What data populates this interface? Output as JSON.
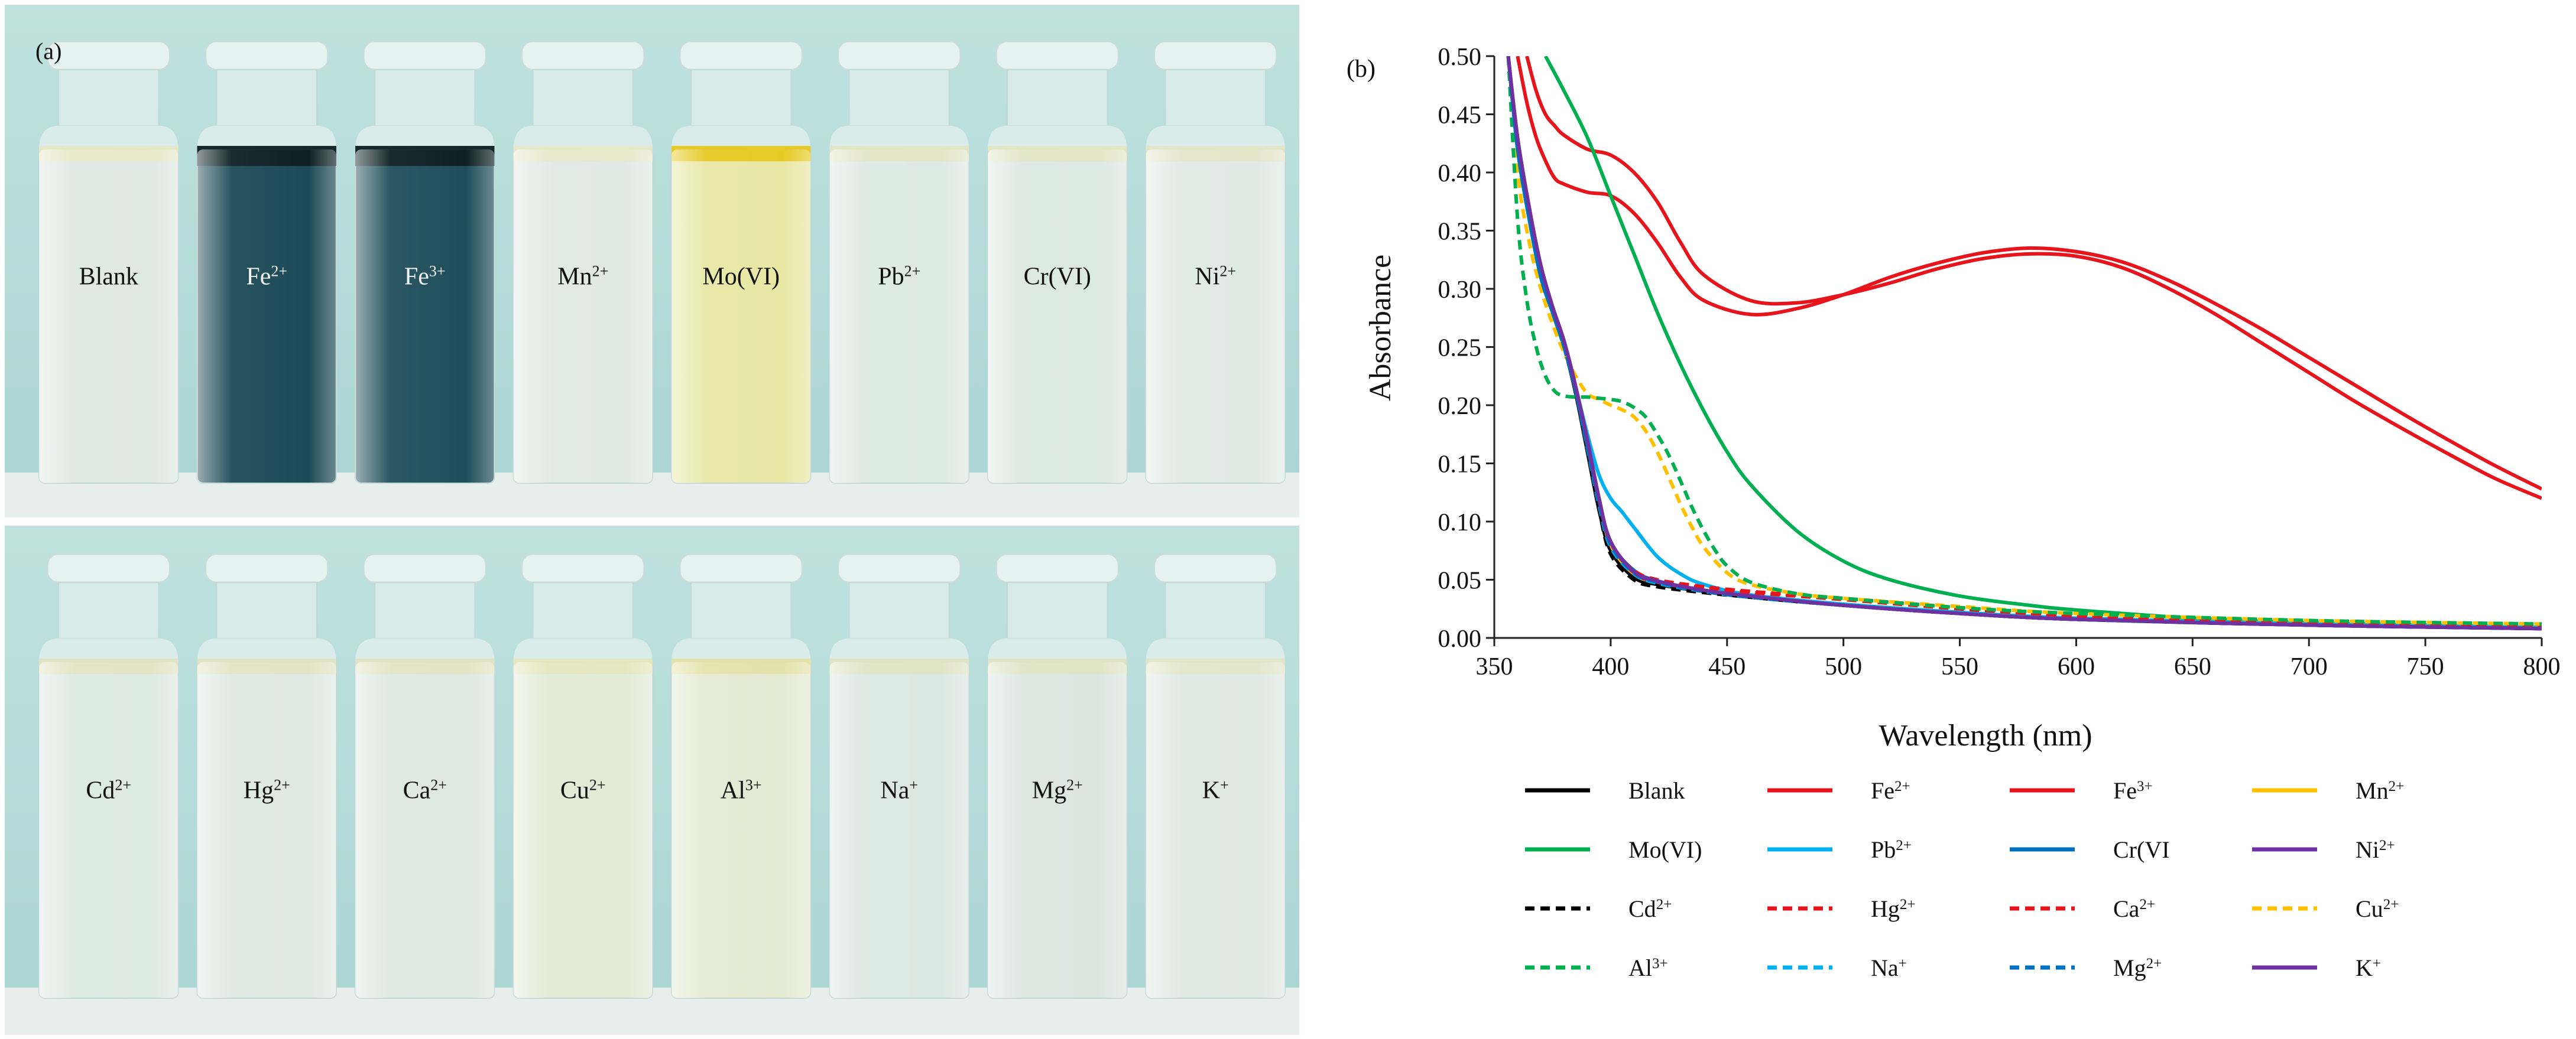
{
  "panel_a": {
    "label": "(a)",
    "top_row": [
      {
        "label": "Blank",
        "liquid": "#dfe9e4",
        "band": "#e6e8c6",
        "tint": "light"
      },
      {
        "label": "Fe2+",
        "liquid": "#1c4a56",
        "band": "#0d1d22",
        "tint": "dark"
      },
      {
        "label": "Fe3+",
        "liquid": "#1f4e5a",
        "band": "#0d1d22",
        "tint": "dark"
      },
      {
        "label": "Mn2+",
        "liquid": "#e0eae4",
        "band": "#e6e8c8",
        "tint": "light"
      },
      {
        "label": "Mo(VI)",
        "liquid": "#e8e7a4",
        "band": "#e6c81e",
        "tint": "light"
      },
      {
        "label": "Pb2+",
        "liquid": "#dde9e3",
        "band": "#e2e6c4",
        "tint": "light"
      },
      {
        "label": "Cr(VI)",
        "liquid": "#dce8e2",
        "band": "#e2e6c4",
        "tint": "light"
      },
      {
        "label": "Ni2+",
        "liquid": "#e0eae5",
        "band": "#e4e6c8",
        "tint": "light"
      }
    ],
    "bottom_row": [
      {
        "label": "Cd2+",
        "liquid": "#dde9e3",
        "band": "#e2e4c2",
        "tint": "light"
      },
      {
        "label": "Hg2+",
        "liquid": "#dfe9e4",
        "band": "#e2e4c2",
        "tint": "light"
      },
      {
        "label": "Ca2+",
        "liquid": "#dde8e2",
        "band": "#e2e4c2",
        "tint": "light"
      },
      {
        "label": "Cu2+",
        "liquid": "#e2ead6",
        "band": "#e4e6bc",
        "tint": "light"
      },
      {
        "label": "Al3+",
        "liquid": "#e4ead2",
        "band": "#e4e2a8",
        "tint": "light"
      },
      {
        "label": "Na+",
        "liquid": "#dbe7e2",
        "band": "#e0e4c4",
        "tint": "light"
      },
      {
        "label": "Mg2+",
        "liquid": "#dbe6e1",
        "band": "#e0e4c4",
        "tint": "light"
      },
      {
        "label": "K+",
        "liquid": "#dfe9e4",
        "band": "#e2e6c8",
        "tint": "light"
      }
    ],
    "background": "#b8dcda",
    "bench": "#e7efec"
  },
  "chart_data": {
    "type": "line",
    "panel_label": "(b)",
    "title": "",
    "xlabel": "Wavelength (nm)",
    "ylabel": "Absorbance",
    "xlim": [
      350,
      800
    ],
    "ylim": [
      0,
      0.5
    ],
    "xticks": [
      350,
      400,
      450,
      500,
      550,
      600,
      650,
      700,
      750,
      800
    ],
    "yticks": [
      0.0,
      0.05,
      0.1,
      0.15,
      0.2,
      0.25,
      0.3,
      0.35,
      0.4,
      0.45,
      0.5
    ],
    "xtick_labels": [
      "350",
      "400",
      "450",
      "500",
      "550",
      "600",
      "650",
      "700",
      "750",
      "800"
    ],
    "ytick_labels": [
      "0.00",
      "0.05",
      "0.10",
      "0.15",
      "0.20",
      "0.25",
      "0.30",
      "0.35",
      "0.40",
      "0.45",
      "0.50"
    ],
    "grid": false,
    "legend_placement": "bottom",
    "legend_columns": 4,
    "series": [
      {
        "name": "Blank",
        "color": "#000000",
        "dash": "solid",
        "x": [
          356,
          360,
          365,
          370,
          375,
          380,
          385,
          390,
          395,
          400,
          410,
          420,
          440,
          460,
          500,
          550,
          600,
          700,
          800
        ],
        "y": [
          0.5,
          0.42,
          0.36,
          0.31,
          0.28,
          0.25,
          0.21,
          0.16,
          0.11,
          0.075,
          0.052,
          0.046,
          0.04,
          0.035,
          0.028,
          0.021,
          0.016,
          0.011,
          0.008
        ]
      },
      {
        "name": "Fe2+",
        "color": "#e8141c",
        "dash": "solid",
        "x": [
          364,
          368,
          372,
          376,
          380,
          390,
          400,
          410,
          420,
          430,
          440,
          460,
          480,
          500,
          520,
          540,
          560,
          580,
          600,
          620,
          640,
          660,
          680,
          700,
          720,
          740,
          760,
          780,
          800
        ],
        "y": [
          0.5,
          0.47,
          0.45,
          0.44,
          0.432,
          0.42,
          0.415,
          0.4,
          0.375,
          0.34,
          0.312,
          0.29,
          0.288,
          0.295,
          0.305,
          0.317,
          0.326,
          0.33,
          0.328,
          0.318,
          0.3,
          0.278,
          0.253,
          0.228,
          0.203,
          0.18,
          0.158,
          0.137,
          0.12
        ]
      },
      {
        "name": "Fe3+",
        "color": "#e8141c",
        "dash": "solid",
        "x": [
          360,
          364,
          368,
          372,
          376,
          380,
          390,
          400,
          410,
          420,
          430,
          440,
          460,
          480,
          500,
          520,
          540,
          560,
          580,
          600,
          620,
          640,
          660,
          680,
          700,
          720,
          740,
          760,
          780,
          800
        ],
        "y": [
          0.5,
          0.46,
          0.43,
          0.41,
          0.395,
          0.39,
          0.383,
          0.38,
          0.365,
          0.34,
          0.31,
          0.29,
          0.278,
          0.283,
          0.295,
          0.31,
          0.322,
          0.331,
          0.335,
          0.332,
          0.323,
          0.307,
          0.287,
          0.265,
          0.241,
          0.217,
          0.193,
          0.17,
          0.148,
          0.128
        ]
      },
      {
        "name": "Mn2+",
        "color": "#ffc000",
        "dash": "solid",
        "x": [
          356,
          360,
          365,
          370,
          375,
          380,
          385,
          390,
          395,
          400,
          410,
          420,
          440,
          460,
          500,
          550,
          600,
          700,
          800
        ],
        "y": [
          0.5,
          0.43,
          0.37,
          0.32,
          0.28,
          0.25,
          0.215,
          0.17,
          0.12,
          0.08,
          0.055,
          0.048,
          0.041,
          0.036,
          0.029,
          0.022,
          0.017,
          0.012,
          0.009
        ]
      },
      {
        "name": "Mo(VI)",
        "color": "#00b050",
        "dash": "solid",
        "x": [
          372,
          380,
          390,
          400,
          410,
          420,
          430,
          440,
          450,
          460,
          480,
          500,
          520,
          550,
          580,
          600,
          650,
          700,
          750,
          800
        ],
        "y": [
          0.5,
          0.47,
          0.43,
          0.38,
          0.33,
          0.28,
          0.235,
          0.195,
          0.16,
          0.132,
          0.092,
          0.066,
          0.05,
          0.036,
          0.028,
          0.024,
          0.017,
          0.013,
          0.011,
          0.009
        ]
      },
      {
        "name": "Pb2+",
        "color": "#00b0f0",
        "dash": "solid",
        "x": [
          356,
          360,
          365,
          370,
          375,
          380,
          385,
          390,
          395,
          400,
          405,
          410,
          420,
          430,
          440,
          460,
          500,
          550,
          600,
          700,
          800
        ],
        "y": [
          0.5,
          0.42,
          0.36,
          0.31,
          0.28,
          0.25,
          0.215,
          0.175,
          0.14,
          0.12,
          0.108,
          0.095,
          0.07,
          0.055,
          0.046,
          0.037,
          0.029,
          0.022,
          0.017,
          0.012,
          0.009
        ]
      },
      {
        "name": "Cr(VI",
        "color": "#0070c0",
        "dash": "solid",
        "x": [
          356,
          360,
          365,
          370,
          375,
          380,
          385,
          390,
          395,
          400,
          410,
          420,
          440,
          460,
          500,
          550,
          600,
          700,
          800
        ],
        "y": [
          0.5,
          0.42,
          0.36,
          0.31,
          0.28,
          0.25,
          0.212,
          0.165,
          0.118,
          0.082,
          0.058,
          0.049,
          0.041,
          0.036,
          0.028,
          0.021,
          0.016,
          0.011,
          0.008
        ]
      },
      {
        "name": "Ni2+",
        "color": "#7030a0",
        "dash": "solid",
        "x": [
          356,
          360,
          365,
          370,
          375,
          380,
          385,
          390,
          395,
          400,
          410,
          420,
          440,
          460,
          500,
          550,
          600,
          700,
          800
        ],
        "y": [
          0.5,
          0.43,
          0.37,
          0.32,
          0.285,
          0.255,
          0.215,
          0.17,
          0.12,
          0.082,
          0.056,
          0.048,
          0.04,
          0.035,
          0.028,
          0.021,
          0.016,
          0.011,
          0.008
        ]
      },
      {
        "name": "Cd2+",
        "color": "#000000",
        "dash": "dashed",
        "x": [
          356,
          360,
          365,
          370,
          375,
          380,
          385,
          390,
          395,
          400,
          410,
          420,
          440,
          460,
          500,
          550,
          600,
          700,
          800
        ],
        "y": [
          0.5,
          0.42,
          0.36,
          0.31,
          0.28,
          0.25,
          0.21,
          0.16,
          0.11,
          0.072,
          0.05,
          0.044,
          0.039,
          0.035,
          0.028,
          0.021,
          0.016,
          0.011,
          0.008
        ]
      },
      {
        "name": "Hg2+",
        "color": "#e8141c",
        "dash": "dashed",
        "x": [
          356,
          360,
          365,
          370,
          375,
          380,
          385,
          390,
          395,
          400,
          410,
          420,
          440,
          460,
          480,
          500,
          550,
          600,
          700,
          800
        ],
        "y": [
          0.5,
          0.42,
          0.36,
          0.31,
          0.28,
          0.25,
          0.212,
          0.165,
          0.115,
          0.08,
          0.058,
          0.05,
          0.044,
          0.04,
          0.037,
          0.034,
          0.026,
          0.019,
          0.012,
          0.009
        ]
      },
      {
        "name": "Ca2+",
        "color": "#e8141c",
        "dash": "dashed",
        "x": [
          356,
          360,
          365,
          370,
          375,
          380,
          385,
          390,
          395,
          400,
          410,
          420,
          440,
          460,
          480,
          500,
          550,
          600,
          700,
          800
        ],
        "y": [
          0.5,
          0.42,
          0.36,
          0.31,
          0.28,
          0.25,
          0.212,
          0.165,
          0.115,
          0.08,
          0.057,
          0.049,
          0.043,
          0.039,
          0.036,
          0.033,
          0.025,
          0.019,
          0.012,
          0.009
        ]
      },
      {
        "name": "Cu2+",
        "color": "#ffc000",
        "dash": "dashed",
        "x": [
          356,
          360,
          365,
          370,
          375,
          380,
          385,
          390,
          395,
          400,
          405,
          410,
          415,
          420,
          425,
          430,
          435,
          440,
          450,
          460,
          480,
          500,
          550,
          600,
          700,
          800
        ],
        "y": [
          0.5,
          0.4,
          0.34,
          0.3,
          0.27,
          0.245,
          0.225,
          0.21,
          0.205,
          0.2,
          0.196,
          0.19,
          0.178,
          0.16,
          0.138,
          0.115,
          0.095,
          0.078,
          0.056,
          0.046,
          0.038,
          0.034,
          0.027,
          0.021,
          0.015,
          0.012
        ]
      },
      {
        "name": "Al3+",
        "color": "#00b050",
        "dash": "dashed",
        "x": [
          356,
          360,
          364,
          368,
          372,
          376,
          380,
          385,
          390,
          395,
          400,
          405,
          410,
          415,
          420,
          425,
          430,
          435,
          440,
          445,
          450,
          460,
          480,
          500,
          550,
          600,
          700,
          800
        ],
        "y": [
          0.5,
          0.36,
          0.29,
          0.25,
          0.225,
          0.212,
          0.208,
          0.207,
          0.207,
          0.206,
          0.205,
          0.203,
          0.198,
          0.19,
          0.175,
          0.157,
          0.135,
          0.112,
          0.092,
          0.075,
          0.062,
          0.048,
          0.038,
          0.034,
          0.026,
          0.021,
          0.015,
          0.012
        ]
      },
      {
        "name": "Na+",
        "color": "#00b0f0",
        "dash": "dashed",
        "x": [
          356,
          360,
          365,
          370,
          375,
          380,
          385,
          390,
          395,
          400,
          410,
          420,
          440,
          460,
          500,
          550,
          600,
          700,
          800
        ],
        "y": [
          0.5,
          0.42,
          0.36,
          0.31,
          0.28,
          0.25,
          0.212,
          0.163,
          0.114,
          0.078,
          0.055,
          0.047,
          0.04,
          0.035,
          0.028,
          0.021,
          0.016,
          0.011,
          0.008
        ]
      },
      {
        "name": "Mg2+",
        "color": "#0070c0",
        "dash": "dashed",
        "x": [
          356,
          360,
          365,
          370,
          375,
          380,
          385,
          390,
          395,
          400,
          410,
          420,
          440,
          460,
          500,
          550,
          600,
          700,
          800
        ],
        "y": [
          0.5,
          0.42,
          0.36,
          0.31,
          0.28,
          0.25,
          0.212,
          0.164,
          0.116,
          0.08,
          0.056,
          0.048,
          0.04,
          0.035,
          0.028,
          0.021,
          0.016,
          0.011,
          0.008
        ]
      },
      {
        "name": "K+",
        "color": "#7030a0",
        "dash": "solid",
        "x": [
          356,
          360,
          365,
          370,
          375,
          380,
          385,
          390,
          395,
          400,
          410,
          420,
          440,
          460,
          500,
          550,
          600,
          700,
          800
        ],
        "y": [
          0.5,
          0.43,
          0.37,
          0.32,
          0.285,
          0.255,
          0.216,
          0.17,
          0.12,
          0.083,
          0.057,
          0.049,
          0.041,
          0.036,
          0.028,
          0.021,
          0.016,
          0.011,
          0.008
        ]
      }
    ]
  }
}
